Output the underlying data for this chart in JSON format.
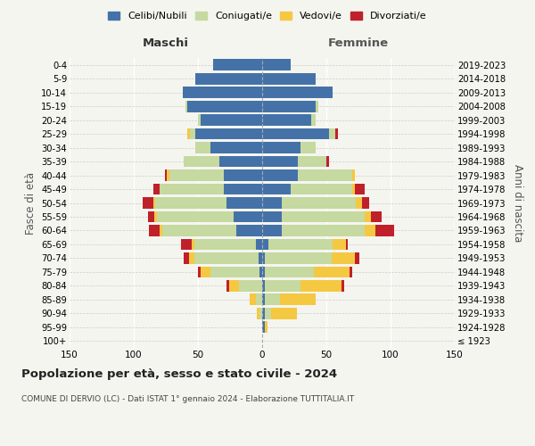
{
  "age_groups": [
    "100+",
    "95-99",
    "90-94",
    "85-89",
    "80-84",
    "75-79",
    "70-74",
    "65-69",
    "60-64",
    "55-59",
    "50-54",
    "45-49",
    "40-44",
    "35-39",
    "30-34",
    "25-29",
    "20-24",
    "15-19",
    "10-14",
    "5-9",
    "0-4"
  ],
  "birth_years": [
    "≤ 1923",
    "1924-1928",
    "1929-1933",
    "1934-1938",
    "1939-1943",
    "1944-1948",
    "1949-1953",
    "1954-1958",
    "1959-1963",
    "1964-1968",
    "1969-1973",
    "1974-1978",
    "1979-1983",
    "1984-1988",
    "1989-1993",
    "1994-1998",
    "1999-2003",
    "2004-2008",
    "2009-2013",
    "2014-2018",
    "2019-2023"
  ],
  "male": {
    "celibi": [
      0,
      0,
      0,
      0,
      0,
      2,
      3,
      5,
      20,
      22,
      28,
      30,
      30,
      33,
      40,
      52,
      48,
      58,
      62,
      52,
      38
    ],
    "coniugati": [
      0,
      0,
      2,
      5,
      18,
      38,
      50,
      48,
      58,
      60,
      55,
      50,
      42,
      28,
      12,
      4,
      2,
      2,
      0,
      0,
      0
    ],
    "vedovi": [
      0,
      0,
      2,
      5,
      8,
      8,
      4,
      2,
      2,
      2,
      2,
      0,
      2,
      0,
      0,
      2,
      0,
      0,
      0,
      0,
      0
    ],
    "divorziati": [
      0,
      0,
      0,
      0,
      2,
      2,
      4,
      8,
      8,
      5,
      8,
      5,
      2,
      0,
      0,
      0,
      0,
      0,
      0,
      0,
      0
    ]
  },
  "female": {
    "nubili": [
      0,
      2,
      2,
      2,
      2,
      2,
      2,
      5,
      15,
      15,
      15,
      22,
      28,
      28,
      30,
      52,
      38,
      42,
      55,
      42,
      22
    ],
    "coniugate": [
      0,
      0,
      5,
      12,
      28,
      38,
      52,
      50,
      65,
      65,
      58,
      48,
      42,
      22,
      12,
      5,
      4,
      2,
      0,
      0,
      0
    ],
    "vedove": [
      0,
      2,
      20,
      28,
      32,
      28,
      18,
      10,
      8,
      5,
      5,
      2,
      2,
      0,
      0,
      0,
      0,
      0,
      0,
      0,
      0
    ],
    "divorziate": [
      0,
      0,
      0,
      0,
      2,
      2,
      4,
      2,
      15,
      8,
      5,
      8,
      0,
      2,
      0,
      2,
      0,
      0,
      0,
      0,
      0
    ]
  },
  "colors": {
    "celibi": "#4472a8",
    "coniugati": "#c5d9a0",
    "vedovi": "#f5c842",
    "divorziati": "#c0202a"
  },
  "xlim": 150,
  "title": "Popolazione per età, sesso e stato civile - 2024",
  "subtitle": "COMUNE DI DERVIO (LC) - Dati ISTAT 1° gennaio 2024 - Elaborazione TUTTITALIA.IT",
  "ylabel_left": "Fasce di età",
  "ylabel_right": "Anni di nascita",
  "xlabel_left": "Maschi",
  "xlabel_right": "Femmine",
  "legend_labels": [
    "Celibi/Nubili",
    "Coniugati/e",
    "Vedovi/e",
    "Divorziati/e"
  ],
  "background_color": "#f5f5f0"
}
